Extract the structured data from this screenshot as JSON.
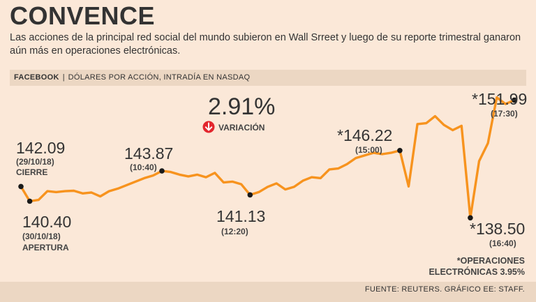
{
  "header": {
    "title": "CONVENCE",
    "subtitle": "Las acciones de la principal red social del mundo subieron en Wall Srreet y luego de su reporte trimestral ganaron aún más en operaciones electrónicas."
  },
  "bar": {
    "brand": "FACEBOOK",
    "separator": "|",
    "description": "DÓLARES POR ACCIÓN, INTRADÍA EN NASDAQ"
  },
  "variation": {
    "value": "2.91%",
    "label": "VARIACIÓN",
    "icon": "down-arrow-icon",
    "icon_color": "#e3262d"
  },
  "annotations": {
    "close": {
      "value": "142.09",
      "date": "(29/10/18)",
      "label": "CIERRE"
    },
    "open": {
      "value": "140.40",
      "date": "(30/10/18)",
      "label": "APERTURA"
    },
    "peak_am": {
      "value": "143.87",
      "time": "(10:40)"
    },
    "low_noon": {
      "value": "141.13",
      "time": "(12:20)"
    },
    "close_day": {
      "value": "*146.22",
      "time": "(15:00)"
    },
    "ah_low": {
      "value": "*138.50",
      "time": "(16:40)"
    },
    "ah_high": {
      "value": "*151.99",
      "time": "(17:30)"
    }
  },
  "note": {
    "line1": "*OPERACIONES",
    "line2": "ELECTRÓNICAS 3.95%"
  },
  "footer": {
    "source": "FUENTE: REUTERS. GRÁFICO EE: STAFF."
  },
  "chart_data": {
    "type": "line",
    "title": "FACEBOOK",
    "ylabel": "Dólares por acción",
    "ylim": [
      137.8,
      153.0
    ],
    "line_color": "#f7931e",
    "series": [
      {
        "name": "Facebook intradía",
        "values": [
          142.09,
          140.4,
          140.55,
          141.55,
          141.45,
          141.55,
          141.6,
          141.3,
          141.4,
          140.95,
          141.55,
          141.85,
          142.25,
          142.65,
          143.05,
          143.35,
          143.87,
          143.75,
          143.45,
          143.25,
          143.45,
          143.15,
          143.65,
          142.55,
          142.65,
          142.35,
          141.13,
          141.45,
          142.05,
          142.45,
          141.75,
          142.05,
          142.75,
          143.15,
          143.05,
          144.05,
          144.15,
          144.65,
          145.35,
          145.65,
          145.95,
          145.8,
          145.95,
          146.22,
          142.1,
          149.25,
          149.35,
          150.15,
          149.15,
          148.55,
          149.05,
          138.5,
          145.0,
          147.05,
          152.3,
          151.55,
          151.99
        ]
      }
    ],
    "highlighted": [
      {
        "label": "142.09",
        "index": 0
      },
      {
        "label": "140.40",
        "index": 1
      },
      {
        "label": "143.87",
        "index": 16
      },
      {
        "label": "141.13",
        "index": 26
      },
      {
        "label": "*146.22",
        "index": 43
      },
      {
        "label": "*138.50",
        "index": 51
      },
      {
        "label": "*151.99",
        "index": 56
      }
    ]
  }
}
